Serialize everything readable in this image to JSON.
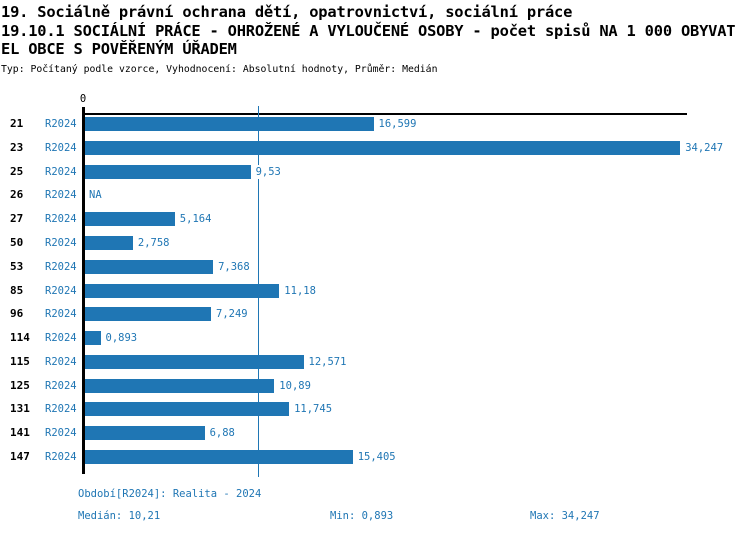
{
  "header": {
    "title_line1": "19. Sociálně právní ochrana dětí, opatrovnictví, sociální práce",
    "title_line2": "19.10.1 SOCIÁLNÍ PRÁCE - OHROŽENÉ A VYLOUČENÉ OSOBY - počet spisů NA 1 000 OBYVAT",
    "title_line3": "EL OBCE S POVĚŘENÝM ÚŘADEM",
    "meta": "Typ: Počítaný podle vzorce, Vyhodnocení: Absolutní hodnoty, Průměr: Medián"
  },
  "chart_data": {
    "type": "bar",
    "orientation": "horizontal",
    "series_name": "R2024",
    "categories": [
      "21",
      "23",
      "25",
      "26",
      "27",
      "50",
      "53",
      "85",
      "96",
      "114",
      "115",
      "125",
      "131",
      "141",
      "147"
    ],
    "values": [
      16.599,
      34.247,
      9.53,
      null,
      5.164,
      2.758,
      7.368,
      11.18,
      7.249,
      0.893,
      12.571,
      10.89,
      11.745,
      6.88,
      15.405
    ],
    "value_labels": [
      "16,599",
      "34,247",
      "9,53",
      "NA",
      "5,164",
      "2,758",
      "7,368",
      "11,18",
      "7,249",
      "0,893",
      "12,571",
      "10,89",
      "11,745",
      "6,88",
      "15,405"
    ],
    "x_axis": {
      "tick_labels": [
        "0"
      ],
      "gridline_value": 10,
      "xlim": [
        0,
        34.8
      ],
      "grid": "single vertical gridline"
    },
    "colors": {
      "bar": "#1F76B4",
      "blue_text": "#1F76B4",
      "axis": "#000000"
    }
  },
  "footer": {
    "period": "Období[R2024]: Realita - 2024",
    "median": "Medián: 10,21",
    "min": "Min: 0,893",
    "max": "Max: 34,247"
  }
}
